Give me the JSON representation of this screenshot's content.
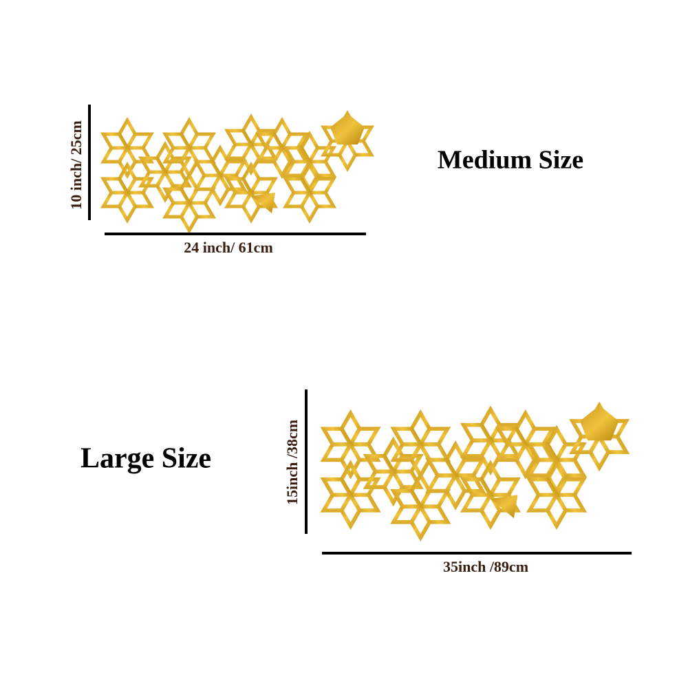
{
  "medium": {
    "title": "Medium Size",
    "height_label": "10 inch/ 25cm",
    "width_label": "24 inch/ 61cm"
  },
  "large": {
    "title": "Large Size",
    "height_label": "15inch /38cm",
    "width_label": "35inch /89cm"
  }
}
